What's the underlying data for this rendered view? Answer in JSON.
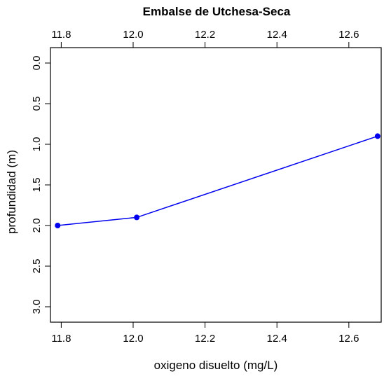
{
  "chart_data": {
    "type": "line",
    "title": "Embalse de Utchesa-Seca",
    "xlabel": "oxigeno disuelto (mg/L)",
    "ylabel": "profundidad (m)",
    "xlim": [
      11.77,
      12.69
    ],
    "ylim": [
      0,
      3
    ],
    "y_reversed": true,
    "x_ticks": [
      "11.8",
      "12.0",
      "12.2",
      "12.4",
      "12.6"
    ],
    "y_ticks": [
      "0.0",
      "0.5",
      "1.0",
      "1.5",
      "2.0",
      "2.5",
      "3.0"
    ],
    "x_tick_positions_top": true,
    "grid": false,
    "series": [
      {
        "x": [
          11.79,
          12.01,
          12.68
        ],
        "y": [
          2.0,
          1.9,
          0.9
        ],
        "color": "#0000ee"
      }
    ]
  }
}
